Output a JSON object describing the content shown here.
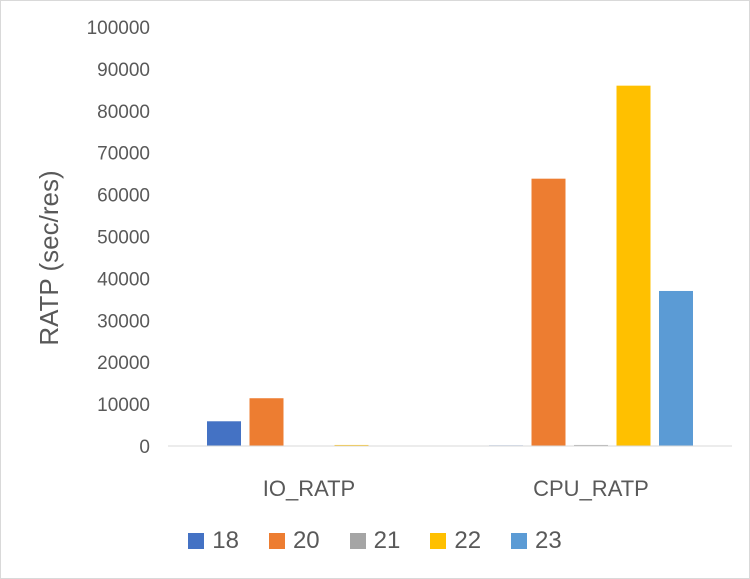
{
  "chart_data": {
    "type": "bar",
    "title": "",
    "xlabel": "",
    "ylabel": "RATP (sec/res)",
    "ylim": [
      0,
      100000
    ],
    "yticks": [
      0,
      10000,
      20000,
      30000,
      40000,
      50000,
      60000,
      70000,
      80000,
      90000,
      100000
    ],
    "categories": [
      "IO_RATP",
      "CPU_RATP"
    ],
    "series": [
      {
        "name": "18",
        "color": "#4472c4",
        "values": [
          5900,
          150
        ]
      },
      {
        "name": "20",
        "color": "#ed7d31",
        "values": [
          11400,
          63800
        ]
      },
      {
        "name": "21",
        "color": "#a5a5a5",
        "values": [
          60,
          250
        ]
      },
      {
        "name": "22",
        "color": "#ffc000",
        "values": [
          250,
          86000
        ]
      },
      {
        "name": "23",
        "color": "#5b9bd5",
        "values": [
          40,
          37000
        ]
      }
    ],
    "grid": false,
    "legend_position": "bottom"
  }
}
